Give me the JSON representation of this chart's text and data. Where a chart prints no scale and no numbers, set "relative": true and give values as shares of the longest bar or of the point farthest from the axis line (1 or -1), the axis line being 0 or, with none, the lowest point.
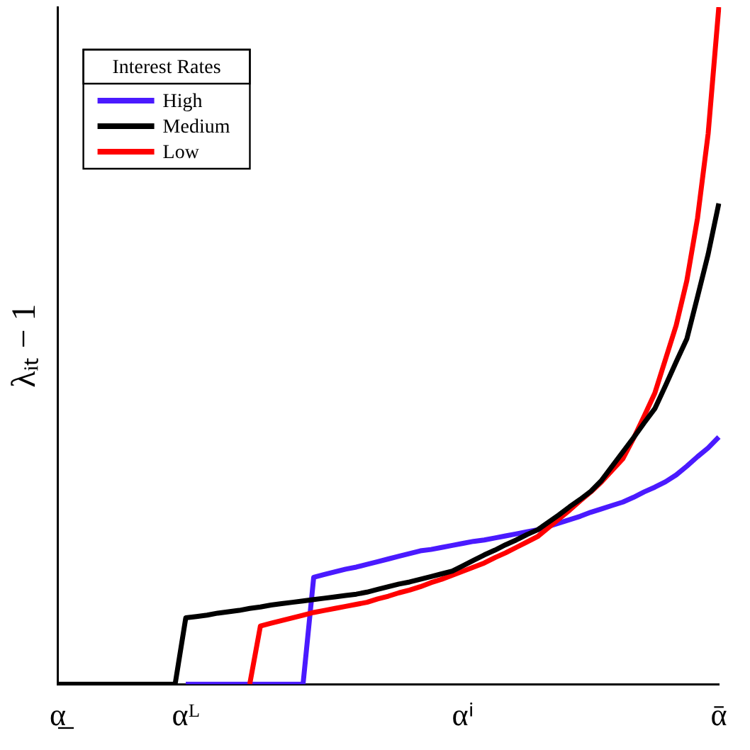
{
  "chart_data": {
    "type": "line",
    "ylabel": "λᵢₜ − 1",
    "legend_title": "Interest Rates",
    "legend": "top left",
    "relative": true,
    "tick_labels": "x",
    "grid": false,
    "marker": "none",
    "line_style": "solid",
    "categories": [
      "α̲",
      null,
      null,
      null,
      null,
      null,
      null,
      null,
      null,
      null,
      null,
      null,
      "αᴸ",
      null,
      null,
      null,
      null,
      null,
      null,
      null,
      null,
      null,
      null,
      null,
      null,
      null,
      null,
      null,
      null,
      null,
      null,
      null,
      null,
      null,
      null,
      null,
      null,
      null,
      "αⁱ",
      null,
      null,
      null,
      null,
      null,
      null,
      null,
      null,
      null,
      null,
      null,
      null,
      null,
      null,
      null,
      null,
      null,
      null,
      null,
      null,
      null,
      null,
      null,
      "ᾱ"
    ],
    "series": [
      {
        "name": "High",
        "color": "#4a1aff",
        "values": [
          null,
          null,
          null,
          null,
          null,
          null,
          null,
          null,
          null,
          null,
          null,
          null,
          0,
          0,
          0,
          0,
          0,
          0,
          0,
          0,
          0,
          0,
          0,
          0,
          0.158,
          0.162,
          0.166,
          0.17,
          0.173,
          0.177,
          0.181,
          0.185,
          0.189,
          0.193,
          0.197,
          0.199,
          0.202,
          0.205,
          0.208,
          0.211,
          0.213,
          0.216,
          0.219,
          0.222,
          0.225,
          0.228,
          0.233,
          0.238,
          0.243,
          0.248,
          0.254,
          0.259,
          0.264,
          0.269,
          0.276,
          0.284,
          0.291,
          0.299,
          0.309,
          0.322,
          0.336,
          0.349,
          0.365
        ]
      },
      {
        "name": "Medium",
        "color": "#000000",
        "values": [
          0,
          0,
          0,
          0,
          0,
          0,
          0,
          0,
          0,
          0,
          0,
          0,
          0.098,
          0.1,
          0.102,
          0.105,
          0.107,
          0.109,
          0.112,
          0.114,
          0.117,
          0.119,
          0.121,
          0.123,
          0.125,
          0.127,
          0.129,
          0.131,
          0.133,
          0.136,
          0.14,
          0.144,
          0.148,
          0.151,
          0.155,
          0.159,
          0.163,
          0.167,
          0.175,
          0.183,
          0.191,
          0.198,
          0.206,
          0.213,
          0.221,
          0.228,
          0.239,
          0.25,
          0.262,
          0.273,
          0.285,
          0.301,
          0.322,
          0.343,
          0.364,
          0.386,
          0.407,
          0.441,
          0.476,
          0.51,
          0.572,
          0.635,
          0.71
        ]
      },
      {
        "name": "Low",
        "color": "#ff0000",
        "values": [
          null,
          null,
          null,
          null,
          null,
          null,
          null,
          null,
          null,
          null,
          null,
          null,
          null,
          null,
          null,
          null,
          null,
          null,
          0,
          0.086,
          0.09,
          0.094,
          0.098,
          0.102,
          0.106,
          0.109,
          0.112,
          0.115,
          0.118,
          0.121,
          0.126,
          0.13,
          0.135,
          0.139,
          0.144,
          0.15,
          0.155,
          0.161,
          0.167,
          0.173,
          0.179,
          0.187,
          0.194,
          0.202,
          0.21,
          0.218,
          0.231,
          0.244,
          0.257,
          0.271,
          0.284,
          0.299,
          0.316,
          0.333,
          0.363,
          0.396,
          0.43,
          0.48,
          0.53,
          0.596,
          0.688,
          0.813,
          1
        ]
      }
    ]
  }
}
